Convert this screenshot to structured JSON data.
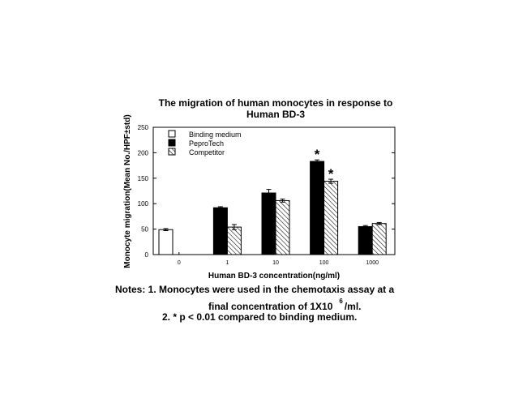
{
  "chart_data": {
    "type": "bar",
    "title_line1": "The migration of human monocytes in response to",
    "title_line2": "Human BD-3",
    "xlabel": "Human BD-3 concentration(ng/ml)",
    "ylabel": "Monocyte migration(Mean No./HPF±std)",
    "ylim": [
      0,
      250
    ],
    "yticks": [
      "0",
      "50",
      "100",
      "150",
      "200",
      "250"
    ],
    "categories": [
      "0",
      "1",
      "10",
      "100",
      "1000"
    ],
    "series": [
      {
        "name": "Binding medium",
        "values": [
          49,
          null,
          null,
          null,
          null
        ],
        "errors": [
          2,
          null,
          null,
          null,
          null
        ],
        "fill": "white"
      },
      {
        "name": "PeproTech",
        "values": [
          null,
          92,
          121,
          183,
          55
        ],
        "errors": [
          null,
          2,
          7,
          3,
          2
        ],
        "fill": "black"
      },
      {
        "name": "Competitor",
        "values": [
          null,
          54,
          106,
          144,
          61
        ],
        "errors": [
          null,
          5,
          3,
          4,
          2
        ],
        "fill": "hatch"
      }
    ],
    "annotations": [
      {
        "text": "*",
        "category": "100",
        "series": "PeproTech"
      },
      {
        "text": "*",
        "category": "100",
        "series": "Competitor"
      }
    ],
    "legend_position": "top-left",
    "grid": false
  },
  "notes": {
    "line1": "Notes:  1.  Monocytes were used in the chemotaxis assay at a",
    "line2a": "final concentration of 1X10",
    "line2sup": "6",
    "line2b": "/ml.",
    "line3": "2. * p < 0.01 compared to binding medium."
  }
}
